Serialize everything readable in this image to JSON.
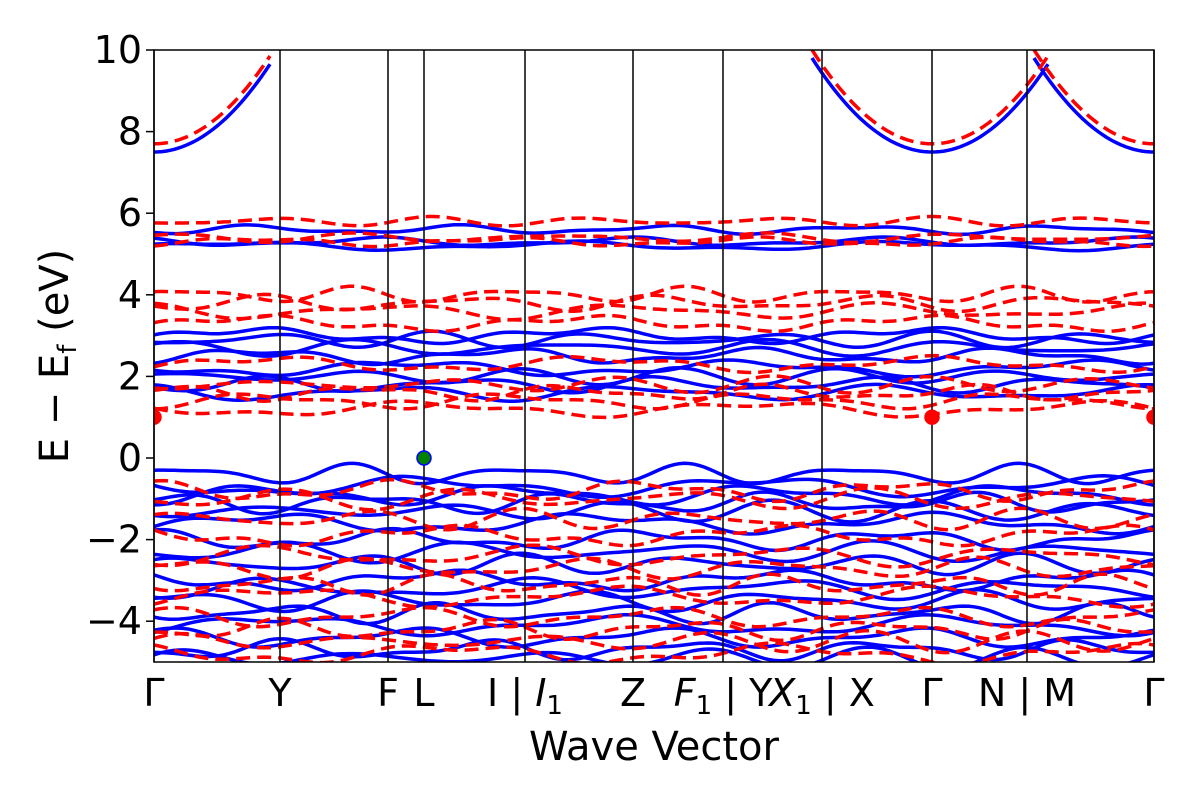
{
  "chart_data": {
    "type": "line",
    "title": "",
    "xlabel": "Wave Vector",
    "ylabel": "E − E_f (eV)",
    "ylabel_parts": {
      "main": "E − E",
      "sub": "f",
      "unit": " (eV)"
    },
    "ylim": [
      -5,
      10
    ],
    "yticks": [
      -4,
      -2,
      0,
      2,
      4,
      6,
      8,
      10
    ],
    "ytick_labels": [
      "−4",
      "−2",
      "0",
      "2",
      "4",
      "6",
      "8",
      "10"
    ],
    "xlim": [
      0,
      1
    ],
    "high_symmetry_points": [
      {
        "label": "Γ",
        "x": 0.0
      },
      {
        "label": "Y",
        "x": 0.126
      },
      {
        "label": "F",
        "x": 0.234
      },
      {
        "label": "L",
        "x": 0.27
      },
      {
        "label": "I | I1",
        "x": 0.371
      },
      {
        "label": "Z",
        "x": 0.479
      },
      {
        "label": "F1 | Y",
        "x": 0.569
      },
      {
        "label": "X1 | X",
        "x": 0.668
      },
      {
        "label": "Γ",
        "x": 0.778
      },
      {
        "label": "N | M",
        "x": 0.873
      },
      {
        "label": "Γ",
        "x": 1.0
      }
    ],
    "xtick_texts": [
      {
        "text": "Γ",
        "x": 0.0,
        "italic_sub": null
      },
      {
        "text": "Y",
        "x": 0.126,
        "italic_sub": null
      },
      {
        "text": "F",
        "x": 0.234,
        "italic_sub": null
      },
      {
        "text": "L",
        "x": 0.27,
        "italic_sub": null
      },
      {
        "text": "I | ",
        "x": 0.371,
        "italic": "I",
        "sub": "1"
      },
      {
        "text": "Z",
        "x": 0.479,
        "italic_sub": null
      },
      {
        "text": " | Y",
        "x": 0.569,
        "italic": "F",
        "sub": "1"
      },
      {
        "text": " | X",
        "x": 0.668,
        "italic": "X",
        "sub": "1"
      },
      {
        "text": "Γ",
        "x": 0.778,
        "italic_sub": null
      },
      {
        "text": "N | M",
        "x": 0.873,
        "italic_sub": null
      },
      {
        "text": "Γ",
        "x": 1.0,
        "italic_sub": null
      }
    ],
    "series": [
      {
        "style": "solid",
        "color": "#0000ff",
        "bands_description": "spin-up bands (solid blue)",
        "flat_bands": [
          5.2,
          5.3,
          5.6,
          2.0,
          2.2,
          2.5,
          2.7,
          2.9,
          3.0,
          1.6,
          1.8,
          -0.4,
          -0.7,
          -0.9,
          -1.1,
          -1.3,
          -1.6,
          -2.0,
          -2.3,
          -2.6,
          -3.0,
          -3.2,
          -3.5,
          -3.8,
          -4.1,
          -4.4,
          -4.7,
          -4.9
        ],
        "conduction_band_min": 7.5
      },
      {
        "style": "dashed",
        "color": "#ff0000",
        "bands_description": "spin-down bands (dashed red)",
        "flat_bands": [
          5.3,
          5.4,
          5.8,
          3.3,
          3.6,
          3.8,
          4.0,
          1.2,
          1.4,
          1.6,
          1.8,
          2.3,
          -0.8,
          -1.0,
          -1.5,
          -1.9,
          -2.4,
          -2.7,
          -3.1,
          -3.4,
          -3.9,
          -4.2,
          -4.5,
          -4.8
        ],
        "conduction_band_min": 7.7
      }
    ],
    "markers": [
      {
        "x": 0.27,
        "y": 0.0,
        "color": "#008000",
        "label": "VBM"
      },
      {
        "x": 0.0,
        "y": 1.0,
        "color": "#ff0000",
        "label": "CBM"
      },
      {
        "x": 0.778,
        "y": 1.0,
        "color": "#ff0000",
        "label": "CBM"
      },
      {
        "x": 1.0,
        "y": 1.0,
        "color": "#ff0000",
        "label": "CBM"
      }
    ]
  }
}
